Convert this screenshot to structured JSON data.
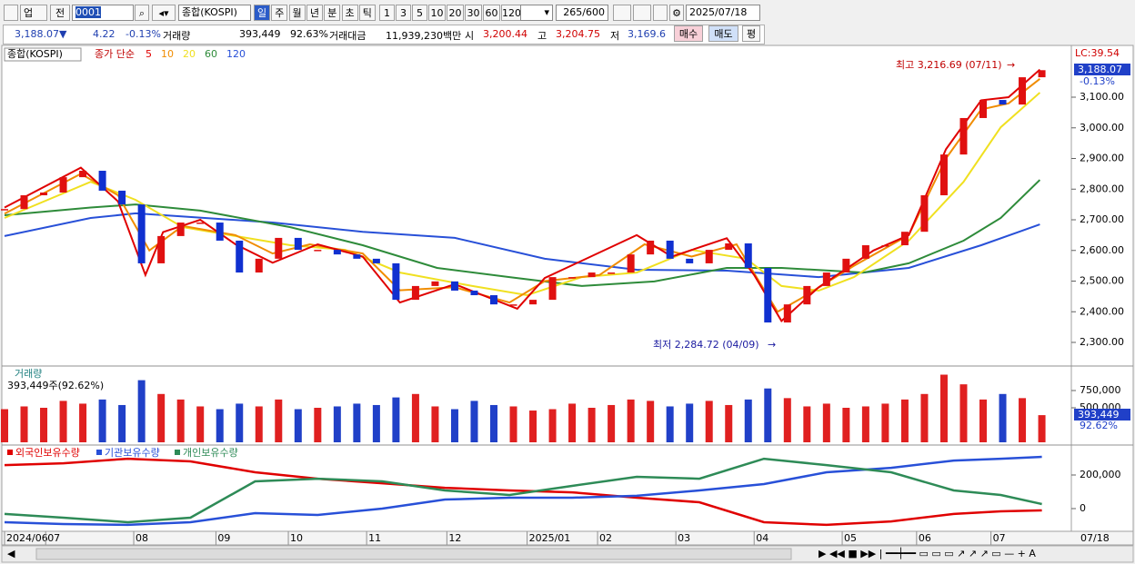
{
  "toolbar": {
    "market": "업",
    "prev": "전",
    "code": "0001",
    "name": "종합(KOSPI)",
    "periods": [
      "일",
      "주",
      "월",
      "년",
      "분",
      "초",
      "틱"
    ],
    "intervals": [
      "1",
      "3",
      "5",
      "10",
      "20",
      "30",
      "60",
      "120"
    ],
    "count": "265",
    "count_max": "/600",
    "date": "2025/07/18"
  },
  "quote": {
    "price": "3,188.07▼",
    "change": "4.22",
    "rate": "-0.13%",
    "volume_label": "거래량",
    "volume": "393,449",
    "volume_rate": "92.63%",
    "amount_label": "거래대금",
    "amount": "11,939,230백만",
    "open_label": "시",
    "open": "3,200.44",
    "high_label": "고",
    "high": "3,204.75",
    "low_label": "저",
    "low": "3,169.6",
    "buy": "매수",
    "sell": "매도",
    "avg": "평"
  },
  "chart_data": [
    {
      "type": "candlestick",
      "legend_name": "종합(KOSPI)",
      "ma_label": "종가 단순",
      "xlim": [
        0,
        54.6
      ],
      "ylim": [
        2223,
        3263
      ],
      "yticks": [
        {
          "value": 2300,
          "label": "2,300.00"
        },
        {
          "value": 2400,
          "label": "2,400.00"
        },
        {
          "value": 2500,
          "label": "2,500.00"
        },
        {
          "value": 2600,
          "label": "2,600.00"
        },
        {
          "value": 2700,
          "label": "2,700.00"
        },
        {
          "value": 2800,
          "label": "2,800.00"
        },
        {
          "value": 2900,
          "label": "2,900.00"
        },
        {
          "value": 3000,
          "label": "3,000.00"
        },
        {
          "value": 3100,
          "label": "3,100.00"
        }
      ],
      "close": [
        2735,
        2780,
        2789,
        2839,
        2860,
        2795,
        2750,
        2558,
        2647,
        2691,
        2691,
        2632,
        2528,
        2573,
        2641,
        2602,
        2602,
        2587,
        2573,
        2558,
        2439,
        2484,
        2499,
        2469,
        2454,
        2424,
        2424,
        2439,
        2513,
        2513,
        2528,
        2528,
        2587,
        2632,
        2573,
        2558,
        2602,
        2623,
        2543,
        2365,
        2424,
        2484,
        2528,
        2573,
        2617,
        2617,
        2661,
        2780,
        2913,
        3032,
        3091,
        3076,
        3165,
        3188.07
      ],
      "series": [
        {
          "name": "5",
          "color": "#e00000",
          "x": [
            0,
            3.9,
            5.8,
            7.2,
            8.1,
            10,
            11.8,
            13.7,
            16,
            18.3,
            20.2,
            23,
            26.2,
            27.6,
            32.3,
            34.1,
            36.9,
            38.3,
            39.7,
            41.6,
            44.4,
            46.2,
            48.1,
            49.9,
            51.3,
            52.9
          ],
          "values": [
            2740,
            2870,
            2760,
            2520,
            2660,
            2700,
            2620,
            2560,
            2620,
            2580,
            2430,
            2490,
            2410,
            2510,
            2650,
            2580,
            2640,
            2520,
            2370,
            2480,
            2600,
            2650,
            2930,
            3090,
            3100,
            3190
          ]
        },
        {
          "name": "10",
          "color": "#f08c00",
          "x": [
            0,
            3.9,
            5.8,
            7.4,
            9.1,
            11.8,
            13.7,
            15.6,
            18.3,
            20.2,
            23,
            25.8,
            27.6,
            30.4,
            32.7,
            35.1,
            37.4,
            39.5,
            40.6,
            43.4,
            46.2,
            48.1,
            49.9,
            51.3,
            52.9
          ],
          "values": [
            2720,
            2850,
            2780,
            2600,
            2680,
            2650,
            2590,
            2620,
            2590,
            2470,
            2480,
            2430,
            2500,
            2520,
            2620,
            2580,
            2620,
            2400,
            2440,
            2550,
            2650,
            2900,
            3060,
            3080,
            3160
          ]
        },
        {
          "name": "20",
          "color": "#f0e020",
          "x": [
            0,
            4.4,
            6.7,
            9.1,
            11.8,
            14.6,
            17.4,
            20.2,
            23.9,
            26.7,
            29.5,
            32.3,
            35.1,
            37.9,
            39.7,
            41.6,
            43.4,
            46.2,
            49,
            50.9,
            52.9
          ],
          "values": [
            2706,
            2824,
            2765,
            2676,
            2647,
            2617,
            2602,
            2528,
            2484,
            2454,
            2513,
            2528,
            2602,
            2573,
            2484,
            2469,
            2513,
            2632,
            2824,
            3002,
            3115
          ]
        },
        {
          "name": "60",
          "color": "#2e8b3a",
          "x": [
            0,
            4.4,
            6.7,
            10,
            14.6,
            18.3,
            22.1,
            25.8,
            29.5,
            33.2,
            36.9,
            39.7,
            43.9,
            46.2,
            49,
            50.9,
            52.9
          ],
          "values": [
            2715,
            2740,
            2750,
            2730,
            2676,
            2617,
            2543,
            2513,
            2484,
            2499,
            2543,
            2543,
            2528,
            2558,
            2632,
            2706,
            2830
          ]
        },
        {
          "name": "120",
          "color": "#2850d8",
          "x": [
            0,
            4.4,
            6.7,
            13.7,
            18.3,
            23,
            27.6,
            32.3,
            36.9,
            41.6,
            46.2,
            49.9,
            52.9
          ],
          "values": [
            2647,
            2706,
            2721,
            2691,
            2661,
            2641,
            2573,
            2537,
            2534,
            2513,
            2543,
            2617,
            2685
          ]
        }
      ],
      "annotations": [
        {
          "text": "최고 3,216.69 (07/11)",
          "color": "#c00000"
        },
        {
          "text": "최저 2,284.72 (04/09)",
          "color": "#1a1aa0"
        }
      ],
      "last_price": "3,188.07",
      "last_rate": "-0.13%",
      "lc": "LC:39.54"
    },
    {
      "type": "bar",
      "title": "거래량",
      "subtitle": "393,449주(92.62%)",
      "xlim": [
        0,
        54.6
      ],
      "ylim": [
        0,
        1079000
      ],
      "yticks": [
        {
          "value": 500000,
          "label": "500,000"
        },
        {
          "value": 750000,
          "label": "750,000"
        }
      ],
      "values": [
        480000,
        520000,
        500000,
        600000,
        560000,
        620000,
        540000,
        900000,
        700000,
        620000,
        520000,
        480000,
        560000,
        520000,
        620000,
        480000,
        500000,
        520000,
        560000,
        540000,
        650000,
        700000,
        520000,
        480000,
        600000,
        540000,
        520000,
        460000,
        480000,
        560000,
        500000,
        540000,
        620000,
        600000,
        520000,
        560000,
        600000,
        540000,
        620000,
        780000,
        640000,
        520000,
        560000,
        500000,
        520000,
        560000,
        620000,
        700000,
        980000,
        840000,
        620000,
        700000,
        640000,
        393449
      ],
      "last_value": "393,449",
      "last_rate": "92.62%"
    },
    {
      "type": "line",
      "xlim": [
        0,
        54.6
      ],
      "ylim": [
        -118900,
        367600
      ],
      "yticks": [
        0,
        {
          "value": 200000,
          "label": "200,000"
        }
      ],
      "xticks": [
        {
          "value": 0,
          "label": "2024/06"
        },
        {
          "value": 2.1,
          "label": "07"
        },
        {
          "value": 6.6,
          "label": "08"
        },
        {
          "value": 10.8,
          "label": "09"
        },
        {
          "value": 14.5,
          "label": "10"
        },
        {
          "value": 18.5,
          "label": "11"
        },
        {
          "value": 22.6,
          "label": "12"
        },
        {
          "value": 26.7,
          "label": "2025/01"
        },
        {
          "value": 30.3,
          "label": "02"
        },
        {
          "value": 34.3,
          "label": "03"
        },
        {
          "value": 38.3,
          "label": "04"
        },
        {
          "value": 42.8,
          "label": "05"
        },
        {
          "value": 46.6,
          "label": "06"
        },
        {
          "value": 50.4,
          "label": "07"
        }
      ],
      "end_label": "07/18",
      "series": [
        {
          "name": "외국인보유수량",
          "color": "#e00000",
          "x": [
            0,
            3,
            6.3,
            9.5,
            12.8,
            16,
            19.3,
            22.5,
            25.8,
            29,
            32.3,
            35.5,
            38.8,
            42,
            45.3,
            48.5,
            50.9,
            53
          ],
          "values": [
            259000,
            270000,
            297000,
            281000,
            216000,
            178000,
            151000,
            124000,
            108000,
            97000,
            65000,
            38000,
            -81000,
            -97000,
            -76000,
            -32000,
            -16000,
            -11000
          ]
        },
        {
          "name": "기관보유수량",
          "color": "#2850d8",
          "x": [
            0,
            3,
            6.3,
            9.5,
            12.8,
            16,
            19.3,
            22.5,
            25.8,
            29,
            32.3,
            35.5,
            38.8,
            42,
            45.3,
            48.5,
            50.9,
            53
          ],
          "values": [
            -81000,
            -92000,
            -97000,
            -81000,
            -27000,
            -38000,
            0,
            54000,
            65000,
            65000,
            76000,
            108000,
            146000,
            216000,
            243000,
            286000,
            297000,
            308000
          ]
        },
        {
          "name": "개인보유수량",
          "color": "#2e8b57",
          "x": [
            0,
            3,
            6.3,
            9.5,
            12.8,
            16,
            19.3,
            22.5,
            25.8,
            29,
            32.3,
            35.5,
            38.8,
            42,
            45.3,
            48.5,
            50.9,
            53
          ],
          "values": [
            -32000,
            -54000,
            -81000,
            -54000,
            162000,
            178000,
            162000,
            108000,
            81000,
            135000,
            189000,
            178000,
            297000,
            259000,
            216000,
            108000,
            81000,
            27000
          ]
        }
      ]
    }
  ]
}
